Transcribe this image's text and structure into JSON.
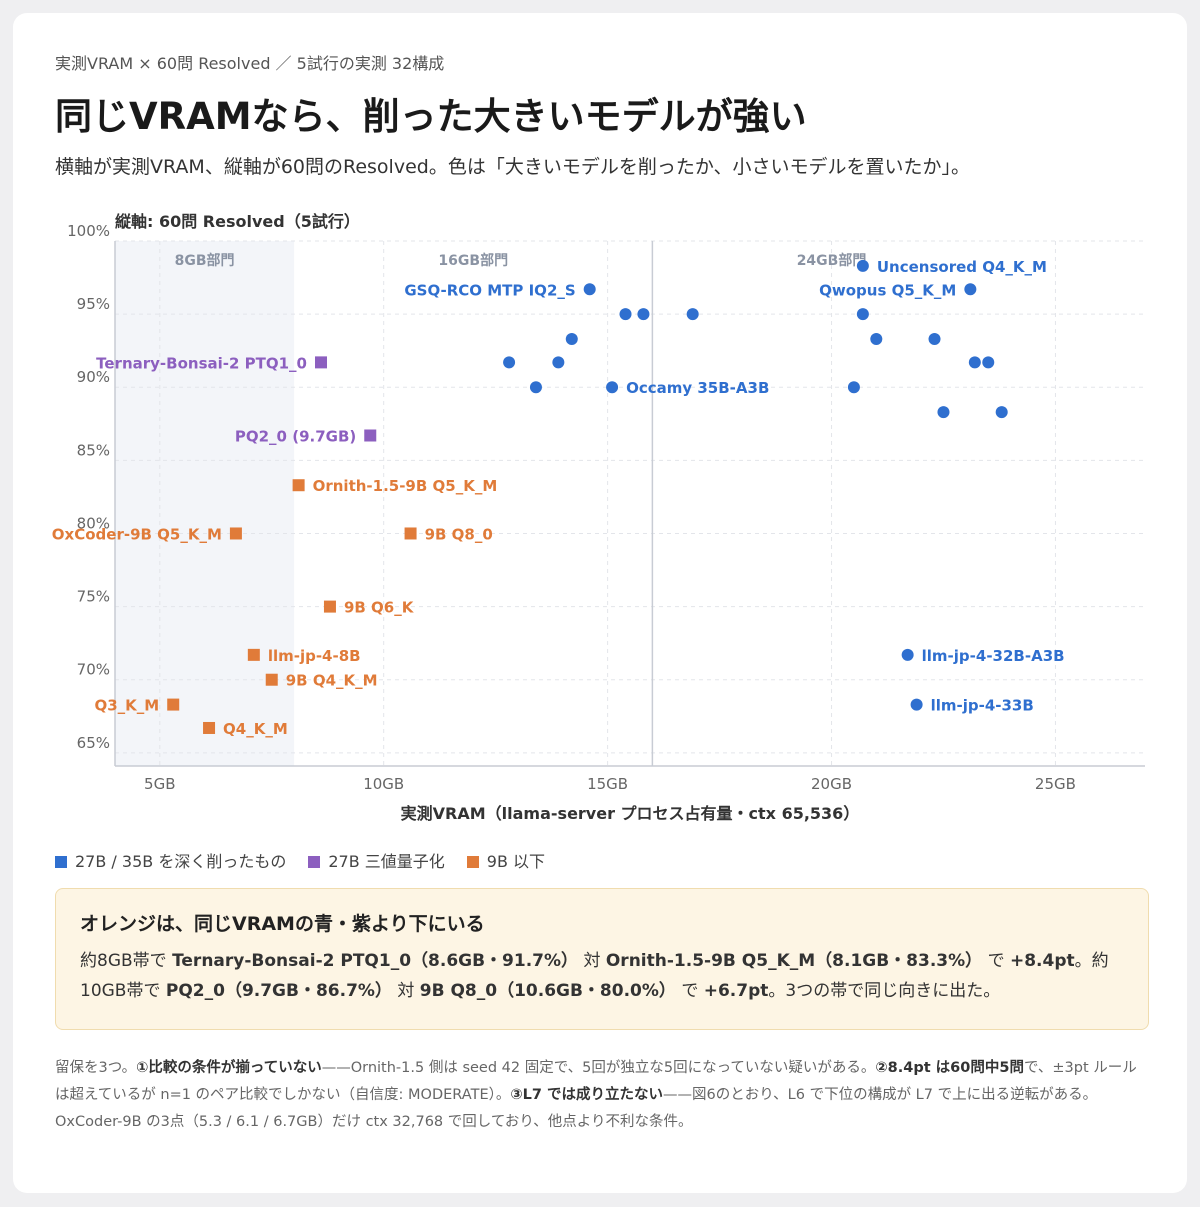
{
  "header": {
    "eyebrow": "実測VRAM × 60問 Resolved ／ 5試行の実測 32構成",
    "title": "同じVRAMなら、削った大きいモデルが強い",
    "subtitle": "横軸が実測VRAM、縦軸が60問のResolved。色は「大きいモデルを削ったか、小さいモデルを置いたか」。"
  },
  "chart_data": {
    "type": "scatter",
    "y_axis_title": "縦軸: 60問 Resolved（5試行）",
    "x_label": "実測VRAM（llama-server プロセス占有量・ctx 65,536）",
    "xlim": [
      4,
      27
    ],
    "ylim": [
      64.1,
      100
    ],
    "xticks": [
      {
        "value": 5,
        "label": "5GB"
      },
      {
        "value": 10,
        "label": "10GB"
      },
      {
        "value": 15,
        "label": "15GB"
      },
      {
        "value": 20,
        "label": "20GB"
      },
      {
        "value": 25,
        "label": "25GB"
      }
    ],
    "yticks": [
      {
        "value": 65,
        "label": "65%"
      },
      {
        "value": 70,
        "label": "70%"
      },
      {
        "value": 75,
        "label": "75%"
      },
      {
        "value": 80,
        "label": "80%"
      },
      {
        "value": 85,
        "label": "85%"
      },
      {
        "value": 90,
        "label": "90%"
      },
      {
        "value": 95,
        "label": "95%"
      },
      {
        "value": 100,
        "label": "100%"
      }
    ],
    "grid": true,
    "regions": [
      {
        "label": "8GB部門",
        "end": 8,
        "shaded": true
      },
      {
        "label": "16GB部門",
        "end": 16
      },
      {
        "label": "24GB部門",
        "end": 24
      }
    ],
    "divider": 16,
    "series": [
      {
        "name": "27B / 35B を深く削ったもの",
        "color": "#2f6fcf",
        "marker": "circle",
        "x": [
          20.7,
          23.1,
          14.6,
          15.4,
          15.8,
          16.9,
          20.7,
          14.2,
          21.0,
          22.3,
          12.8,
          13.9,
          23.2,
          23.5,
          13.4,
          15.1,
          20.5,
          22.5,
          23.8,
          21.7,
          21.9
        ],
        "values": [
          98.3,
          96.7,
          96.7,
          95.0,
          95.0,
          95.0,
          95.0,
          93.3,
          93.3,
          93.3,
          91.7,
          91.7,
          91.7,
          91.7,
          90.0,
          90.0,
          90.0,
          88.3,
          88.3,
          71.7,
          68.3
        ],
        "labels": [
          "Uncensored Q4_K_M",
          "Qwopus Q5_K_M",
          "GSQ-RCO MTP IQ2_S",
          null,
          null,
          null,
          null,
          null,
          null,
          null,
          null,
          null,
          null,
          null,
          null,
          "Occamy 35B-A3B",
          null,
          null,
          null,
          "llm-jp-4-32B-A3B",
          "llm-jp-4-33B"
        ]
      },
      {
        "name": "27B 三値量子化",
        "color": "#8c5fbf",
        "marker": "square",
        "x": [
          8.6,
          9.7
        ],
        "values": [
          91.7,
          86.7
        ],
        "labels": [
          "Ternary-Bonsai-2 PTQ1_0",
          "PQ2_0 (9.7GB)"
        ]
      },
      {
        "name": "9B 以下",
        "color": "#e07b39",
        "marker": "square",
        "x": [
          8.1,
          6.7,
          10.6,
          8.8,
          7.1,
          7.5,
          5.3,
          6.1
        ],
        "values": [
          83.3,
          80.0,
          80.0,
          75.0,
          71.7,
          70.0,
          68.3,
          66.7
        ],
        "labels": [
          "Ornith-1.5-9B Q5_K_M",
          "OxCoder-9B Q5_K_M",
          "9B Q8_0",
          "9B Q6_K",
          "llm-jp-4-8B",
          "9B Q4_K_M",
          "Q3_K_M",
          "Q4_K_M"
        ]
      }
    ]
  },
  "callout": {
    "title": "オレンジは、同じVRAMの青・紫より下にいる",
    "body": [
      {
        "t": "約8GB帯で "
      },
      {
        "t": "Ternary-Bonsai-2 PTQ1_0（8.6GB・91.7%）",
        "b": true
      },
      {
        "t": " 対 "
      },
      {
        "t": "Ornith-1.5-9B Q5_K_M（8.1GB・83.3%）",
        "b": true
      },
      {
        "t": " で "
      },
      {
        "t": "+8.4pt",
        "b": true
      },
      {
        "t": "。約10GB帯で "
      },
      {
        "t": "PQ2_0（9.7GB・86.7%）",
        "b": true
      },
      {
        "t": " 対 "
      },
      {
        "t": "9B Q8_0（10.6GB・80.0%）",
        "b": true
      },
      {
        "t": " で "
      },
      {
        "t": "+6.7pt",
        "b": true
      },
      {
        "t": "。3つの帯で同じ向きに出た。"
      }
    ]
  },
  "notes": [
    [
      {
        "t": "留保を3つ。"
      },
      {
        "t": "①比較の条件が揃っていない",
        "b": true
      },
      {
        "t": "——Ornith-1.5 側は seed 42 固定で、5回が独立な5回になっていない疑いがある。"
      },
      {
        "t": "②8.4pt は60問中5問",
        "b": true
      },
      {
        "t": "で、±3pt ルールは超えているが n=1 のペア比較でしかない（自信度: MODERATE）。"
      },
      {
        "t": "③L7 では成り立たない",
        "b": true
      },
      {
        "t": "——図6のとおり、L6 で下位の構成が L7 で上に出る逆転がある。"
      }
    ],
    [
      {
        "t": "OxCoder-9B の3点（5.3 / 6.1 / 6.7GB）だけ ctx 32,768 で回しており、他点より不利な条件。"
      }
    ]
  ]
}
